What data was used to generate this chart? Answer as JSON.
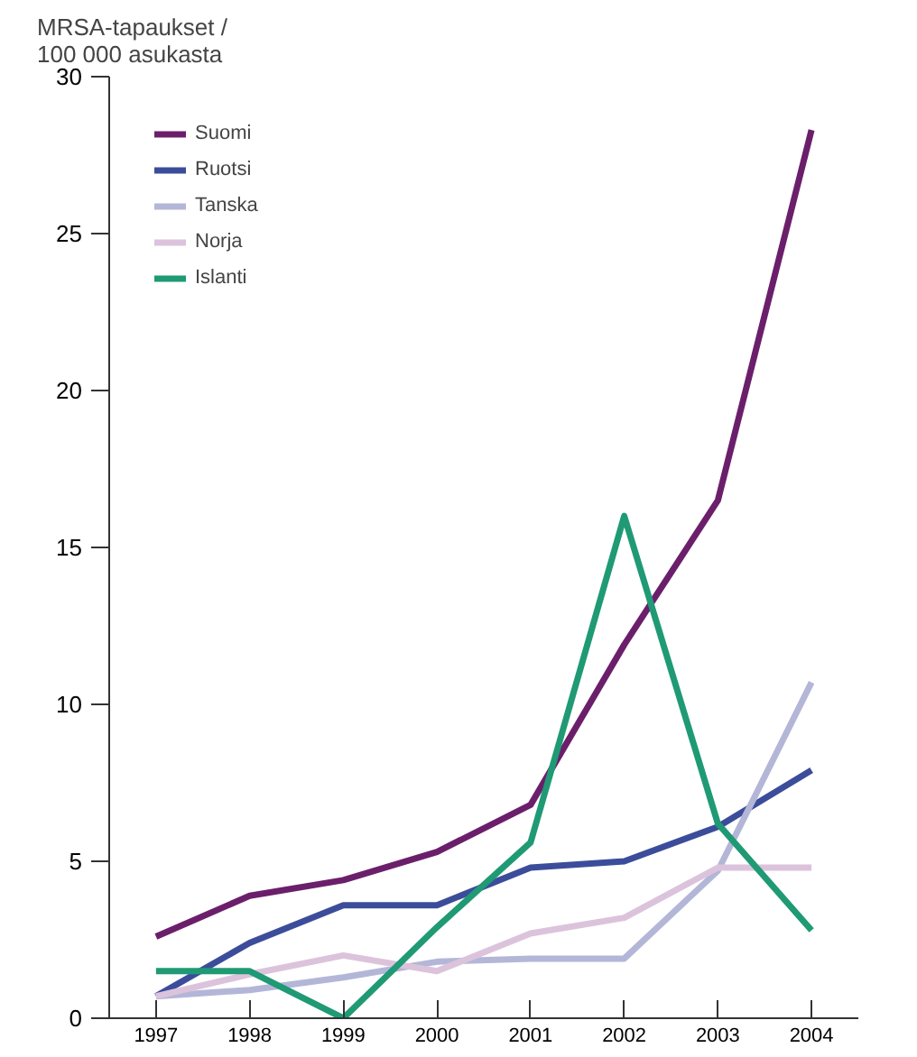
{
  "chart_data": {
    "type": "line",
    "ylabel": "MRSA-tapaukset /\n100 000 asukasta",
    "x": [
      1997,
      1998,
      1999,
      2000,
      2001,
      2002,
      2003,
      2004
    ],
    "xlim": [
      1996.5,
      2004.5
    ],
    "xticks": [
      1997,
      1998,
      1999,
      2000,
      2001,
      2002,
      2003,
      2004
    ],
    "ylim": [
      0,
      30
    ],
    "yticks": [
      0,
      5,
      10,
      15,
      20,
      25,
      30
    ],
    "grid": false,
    "legend": "top left",
    "marker": "none",
    "line_style": "solid",
    "series": [
      {
        "name": "Suomi",
        "color": "#6b1f6b",
        "values": [
          2.6,
          3.9,
          4.4,
          5.3,
          6.8,
          11.9,
          16.5,
          28.3
        ]
      },
      {
        "name": "Ruotsi",
        "color": "#3b4d9a",
        "values": [
          0.7,
          2.4,
          3.6,
          3.6,
          4.8,
          5.0,
          6.1,
          7.9
        ]
      },
      {
        "name": "Tanska",
        "color": "#b4b6d8",
        "values": [
          0.7,
          0.9,
          1.3,
          1.8,
          1.9,
          1.9,
          4.7,
          10.7
        ]
      },
      {
        "name": "Norja",
        "color": "#dcc3dc",
        "values": [
          0.7,
          1.4,
          2.0,
          1.5,
          2.7,
          3.2,
          4.8,
          4.8
        ]
      },
      {
        "name": "Islanti",
        "color": "#1f9a74",
        "values": [
          1.5,
          1.5,
          0.0,
          2.9,
          5.6,
          16.0,
          6.2,
          2.8
        ]
      }
    ]
  }
}
